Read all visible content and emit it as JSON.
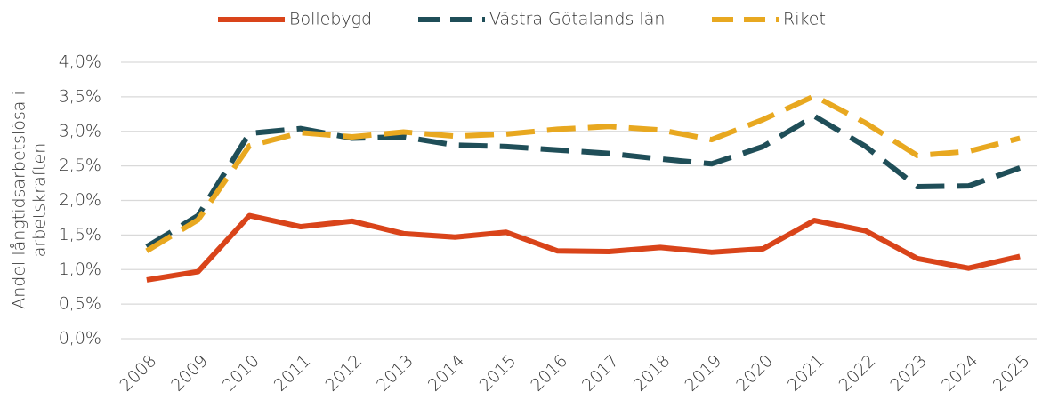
{
  "chart_data": {
    "type": "line",
    "ylabel": [
      "Andel långtidsarbetslösa i",
      "arbetskraften"
    ],
    "categories": [
      "2008",
      "2009",
      "2010",
      "2011",
      "2012",
      "2013",
      "2014",
      "2015",
      "2016",
      "2017",
      "2018",
      "2019",
      "2020",
      "2021",
      "2022",
      "2023",
      "2024",
      "2025"
    ],
    "series": [
      {
        "name": "Bollebygd",
        "color": "#d9441a",
        "style": "solid",
        "values": [
          0.85,
          0.97,
          1.78,
          1.62,
          1.7,
          1.52,
          1.47,
          1.54,
          1.27,
          1.26,
          1.32,
          1.25,
          1.3,
          1.71,
          1.56,
          1.16,
          1.02,
          1.19
        ]
      },
      {
        "name": "Västra Götalands län",
        "color": "#1f4e58",
        "style": "dashed",
        "values": [
          1.33,
          1.78,
          2.97,
          3.04,
          2.9,
          2.92,
          2.8,
          2.78,
          2.73,
          2.68,
          2.6,
          2.53,
          2.78,
          3.22,
          2.78,
          2.2,
          2.21,
          2.47
        ]
      },
      {
        "name": "Riket",
        "color": "#e8a820",
        "style": "dashed",
        "values": [
          1.27,
          1.72,
          2.79,
          2.98,
          2.92,
          2.99,
          2.93,
          2.96,
          3.03,
          3.07,
          3.02,
          2.88,
          3.17,
          3.51,
          3.12,
          2.65,
          2.71,
          2.9
        ]
      }
    ],
    "ylim": [
      0,
      4
    ],
    "yticks": [
      {
        "value": 0,
        "label": "0,0%"
      },
      {
        "value": 0.5,
        "label": "0,5%"
      },
      {
        "value": 1,
        "label": "1,0%"
      },
      {
        "value": 1.5,
        "label": "1,5%"
      },
      {
        "value": 2,
        "label": "2,0%"
      },
      {
        "value": 2.5,
        "label": "2,5%"
      },
      {
        "value": 3,
        "label": "3,0%"
      },
      {
        "value": 3.5,
        "label": "3,5%"
      },
      {
        "value": 4,
        "label": "4,0%"
      }
    ],
    "grid": true,
    "legend": "top"
  }
}
